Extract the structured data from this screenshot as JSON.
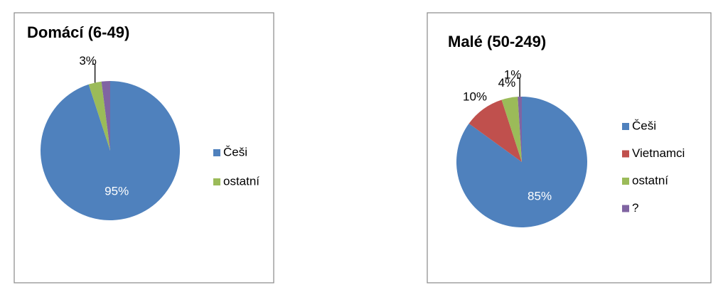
{
  "chart_data": [
    {
      "type": "pie",
      "title": "Domácí (6-49)",
      "categories": [
        "Češi",
        "ostatní",
        null
      ],
      "values": [
        95,
        3,
        2
      ],
      "value_labels": [
        "95%",
        "3%",
        null
      ],
      "colors": [
        "#4f81bd",
        "#9bbb59",
        "#8064a2"
      ]
    },
    {
      "type": "pie",
      "title": "Malé (50-249)",
      "categories": [
        "Češi",
        "Vietnamci",
        "ostatní",
        "?"
      ],
      "values": [
        85,
        10,
        4,
        1
      ],
      "value_labels": [
        "85%",
        "10%",
        "4%",
        "1%"
      ],
      "colors": [
        "#4f81bd",
        "#c0504d",
        "#9bbb59",
        "#8064a2"
      ]
    }
  ]
}
